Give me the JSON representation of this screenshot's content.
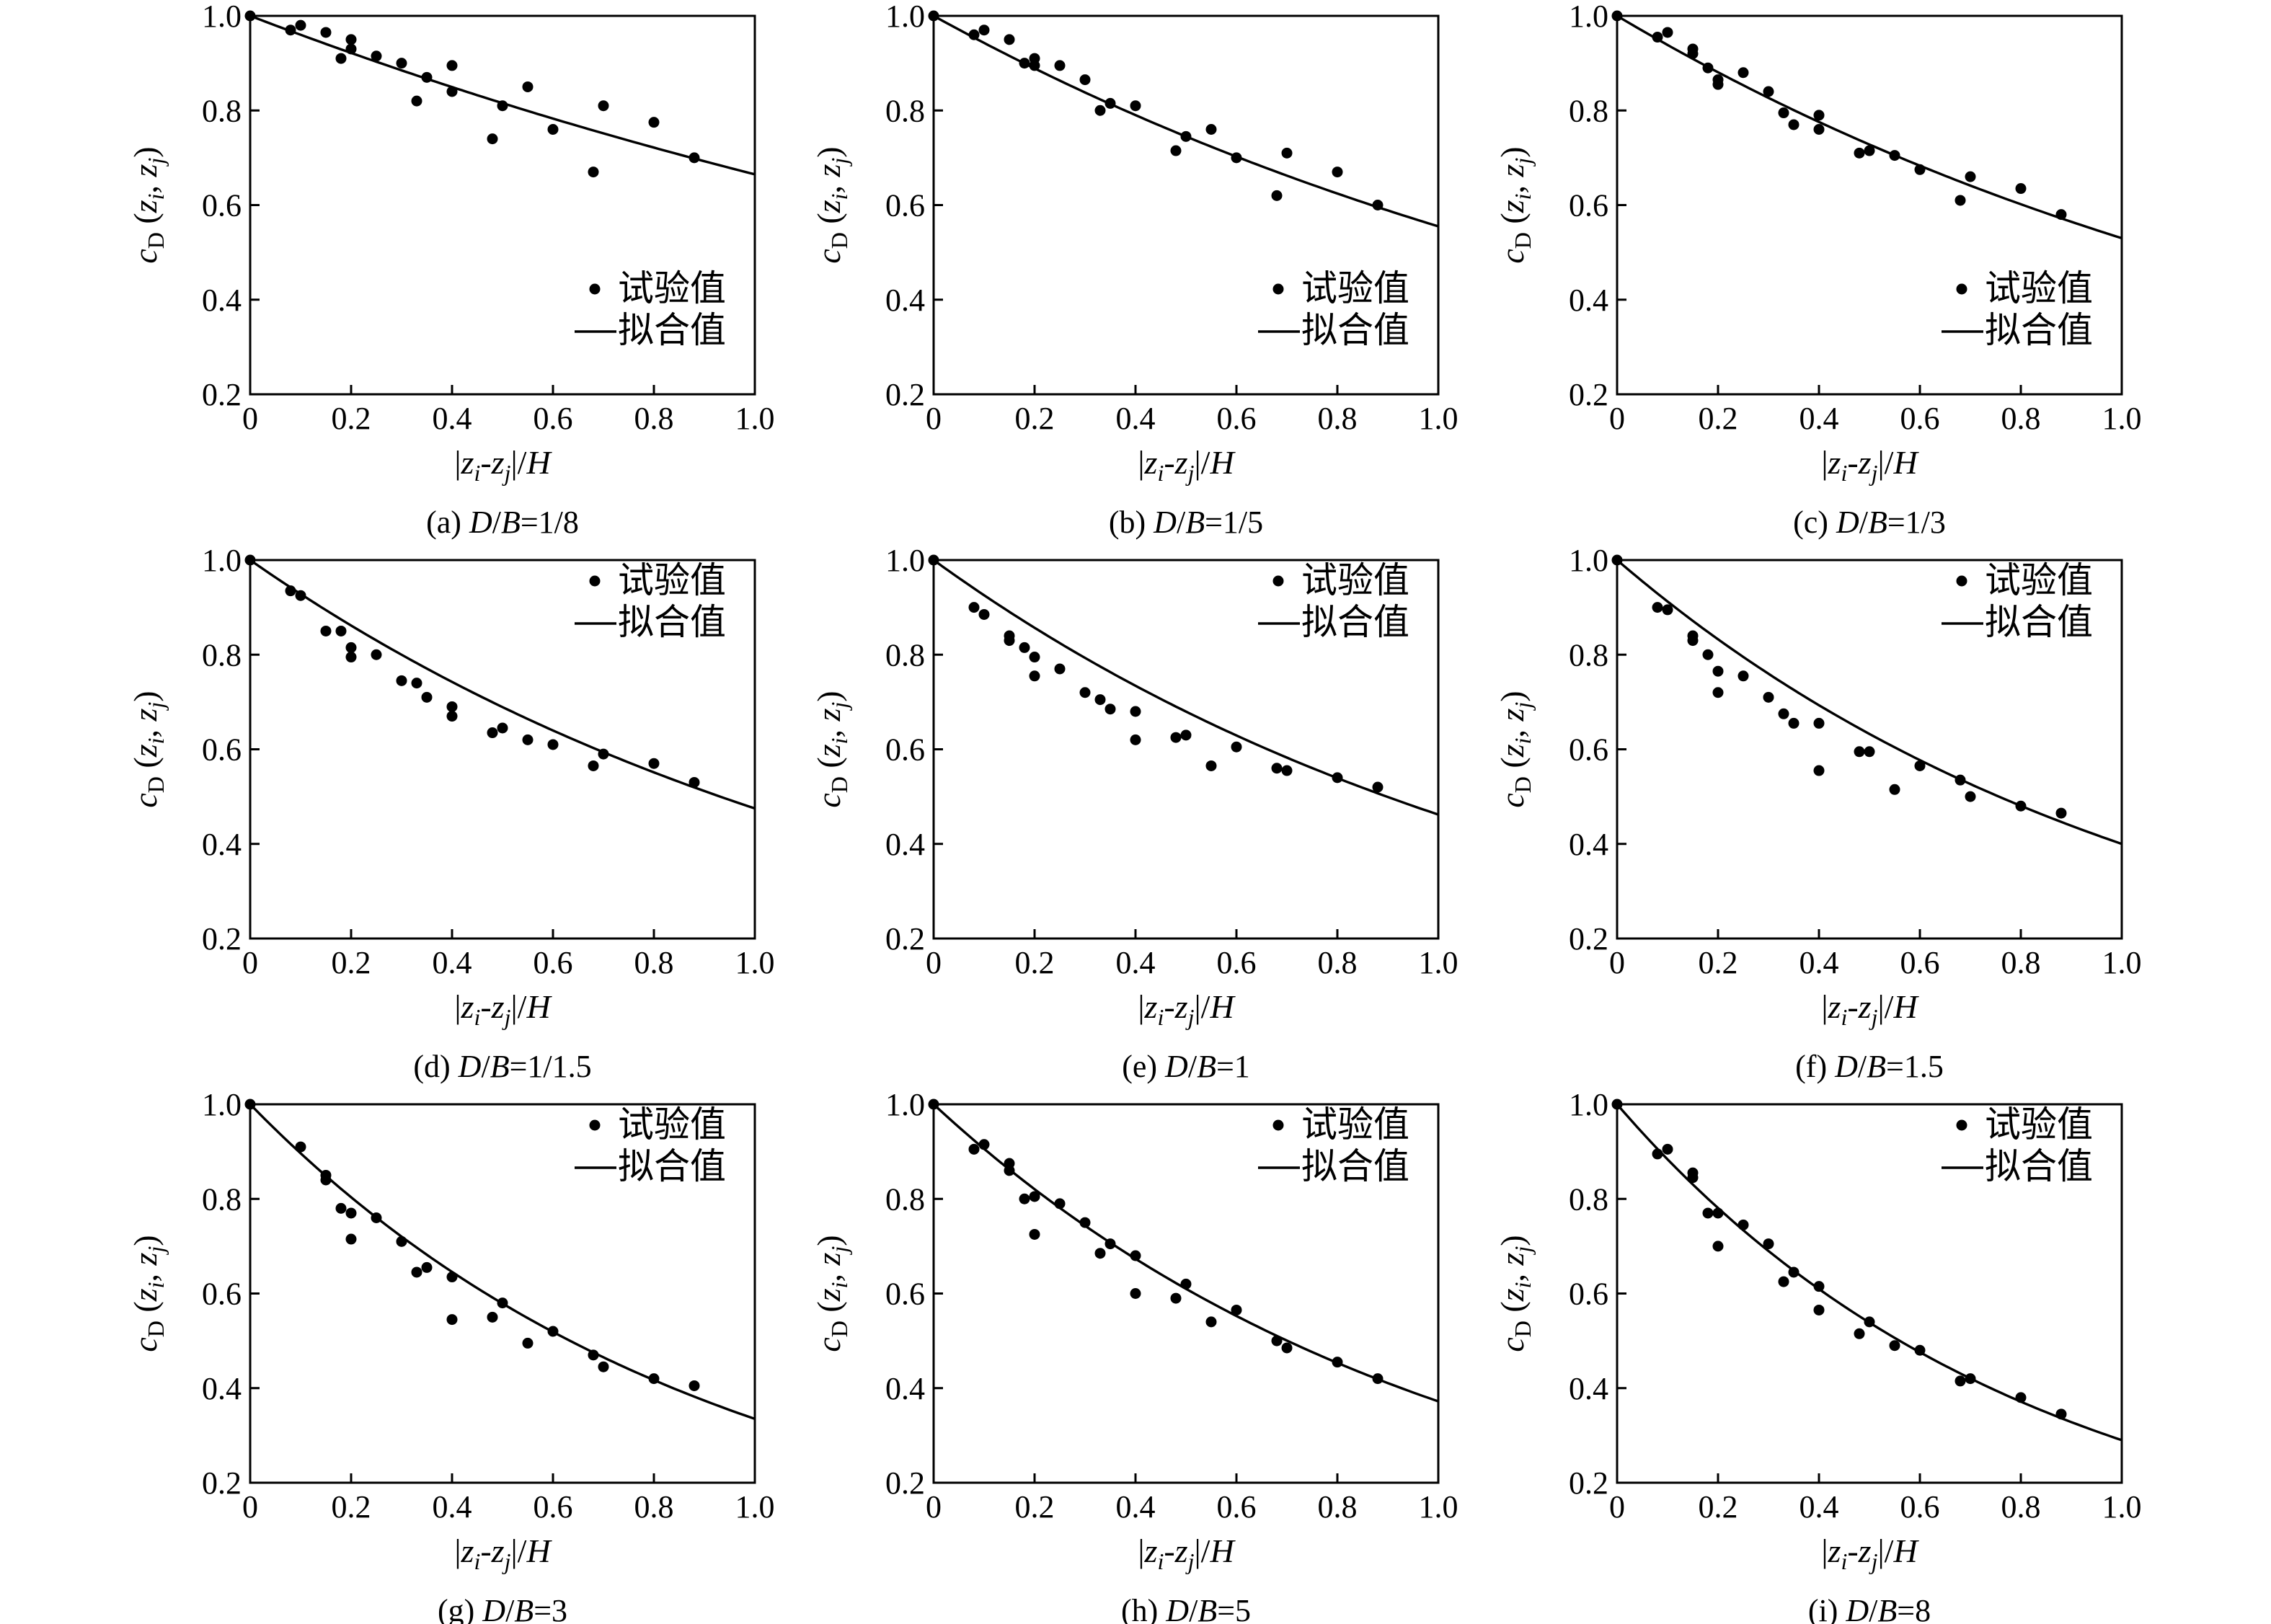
{
  "legend": {
    "test": "试验值",
    "fit": "拟合值"
  },
  "chart_data": [
    {
      "type": "scatter",
      "caption": {
        "label": "(a)",
        "ratio": "1/8"
      },
      "xlim": [
        0,
        1.0
      ],
      "ylim": [
        0.2,
        1.0
      ],
      "xticks": [
        "0",
        "0.2",
        "0.4",
        "0.6",
        "0.8",
        "1.0"
      ],
      "yticks": [
        "0.2",
        "0.4",
        "0.6",
        "0.8",
        "1.0"
      ],
      "fit_end": 0.665,
      "series": [
        {
          "x": [
            0,
            0.08,
            0.1,
            0.15,
            0.18,
            0.2,
            0.2,
            0.25,
            0.3,
            0.33,
            0.35,
            0.4,
            0.4,
            0.48,
            0.5,
            0.55,
            0.6,
            0.68,
            0.7,
            0.8,
            0.88
          ],
          "y": [
            1.0,
            0.97,
            0.98,
            0.965,
            0.91,
            0.95,
            0.93,
            0.915,
            0.9,
            0.82,
            0.87,
            0.895,
            0.84,
            0.74,
            0.81,
            0.85,
            0.76,
            0.67,
            0.81,
            0.775,
            0.7
          ]
        }
      ]
    },
    {
      "type": "scatter",
      "caption": {
        "label": "(b)",
        "ratio": "1/5"
      },
      "xlim": [
        0,
        1.0
      ],
      "ylim": [
        0.2,
        1.0
      ],
      "xticks": [
        "0",
        "0.2",
        "0.4",
        "0.6",
        "0.8",
        "1.0"
      ],
      "yticks": [
        "0.2",
        "0.4",
        "0.6",
        "0.8",
        "1.0"
      ],
      "fit_end": 0.555,
      "series": [
        {
          "x": [
            0,
            0.08,
            0.1,
            0.15,
            0.18,
            0.2,
            0.2,
            0.25,
            0.3,
            0.33,
            0.35,
            0.4,
            0.48,
            0.5,
            0.55,
            0.6,
            0.68,
            0.7,
            0.8,
            0.88
          ],
          "y": [
            1.0,
            0.96,
            0.97,
            0.95,
            0.9,
            0.91,
            0.895,
            0.895,
            0.865,
            0.8,
            0.815,
            0.81,
            0.715,
            0.745,
            0.76,
            0.7,
            0.62,
            0.71,
            0.67,
            0.6
          ]
        }
      ]
    },
    {
      "type": "scatter",
      "caption": {
        "label": "(c)",
        "ratio": "1/3"
      },
      "xlim": [
        0,
        1.0
      ],
      "ylim": [
        0.2,
        1.0
      ],
      "xticks": [
        "0",
        "0.2",
        "0.4",
        "0.6",
        "0.8",
        "1.0"
      ],
      "yticks": [
        "0.2",
        "0.4",
        "0.6",
        "0.8",
        "1.0"
      ],
      "fit_end": 0.53,
      "series": [
        {
          "x": [
            0,
            0.08,
            0.1,
            0.15,
            0.15,
            0.18,
            0.2,
            0.2,
            0.25,
            0.3,
            0.33,
            0.35,
            0.4,
            0.4,
            0.48,
            0.5,
            0.55,
            0.6,
            0.68,
            0.7,
            0.8,
            0.88
          ],
          "y": [
            1.0,
            0.955,
            0.965,
            0.93,
            0.92,
            0.89,
            0.865,
            0.855,
            0.88,
            0.84,
            0.795,
            0.77,
            0.79,
            0.76,
            0.71,
            0.715,
            0.705,
            0.675,
            0.61,
            0.66,
            0.635,
            0.58
          ]
        }
      ]
    },
    {
      "type": "scatter",
      "caption": {
        "label": "(d)",
        "ratio": "1/1.5"
      },
      "xlim": [
        0,
        1.0
      ],
      "ylim": [
        0.2,
        1.0
      ],
      "xticks": [
        "0",
        "0.2",
        "0.4",
        "0.6",
        "0.8",
        "1.0"
      ],
      "yticks": [
        "0.2",
        "0.4",
        "0.6",
        "0.8",
        "1.0"
      ],
      "fit_end": 0.475,
      "series": [
        {
          "x": [
            0,
            0.08,
            0.1,
            0.15,
            0.18,
            0.2,
            0.2,
            0.25,
            0.3,
            0.33,
            0.35,
            0.4,
            0.4,
            0.48,
            0.5,
            0.55,
            0.6,
            0.68,
            0.7,
            0.8,
            0.88
          ],
          "y": [
            1.0,
            0.935,
            0.925,
            0.85,
            0.85,
            0.815,
            0.795,
            0.8,
            0.745,
            0.74,
            0.71,
            0.69,
            0.67,
            0.635,
            0.645,
            0.62,
            0.61,
            0.565,
            0.59,
            0.57,
            0.53
          ]
        }
      ]
    },
    {
      "type": "scatter",
      "caption": {
        "label": "(e)",
        "ratio": "1"
      },
      "xlim": [
        0,
        1.0
      ],
      "ylim": [
        0.2,
        1.0
      ],
      "xticks": [
        "0",
        "0.2",
        "0.4",
        "0.6",
        "0.8",
        "1.0"
      ],
      "yticks": [
        "0.2",
        "0.4",
        "0.6",
        "0.8",
        "1.0"
      ],
      "fit_end": 0.462,
      "series": [
        {
          "x": [
            0,
            0.08,
            0.1,
            0.15,
            0.15,
            0.18,
            0.2,
            0.2,
            0.25,
            0.3,
            0.33,
            0.35,
            0.4,
            0.4,
            0.48,
            0.5,
            0.55,
            0.6,
            0.68,
            0.7,
            0.8,
            0.88
          ],
          "y": [
            1.0,
            0.9,
            0.885,
            0.84,
            0.83,
            0.815,
            0.795,
            0.755,
            0.77,
            0.72,
            0.705,
            0.685,
            0.68,
            0.62,
            0.625,
            0.63,
            0.565,
            0.605,
            0.56,
            0.555,
            0.54,
            0.52
          ]
        }
      ]
    },
    {
      "type": "scatter",
      "caption": {
        "label": "(f)",
        "ratio": "1.5"
      },
      "xlim": [
        0,
        1.0
      ],
      "ylim": [
        0.2,
        1.0
      ],
      "xticks": [
        "0",
        "0.2",
        "0.4",
        "0.6",
        "0.8",
        "1.0"
      ],
      "yticks": [
        "0.2",
        "0.4",
        "0.6",
        "0.8",
        "1.0"
      ],
      "fit_end": 0.4,
      "series": [
        {
          "x": [
            0,
            0.08,
            0.1,
            0.15,
            0.15,
            0.18,
            0.2,
            0.2,
            0.25,
            0.3,
            0.33,
            0.35,
            0.4,
            0.4,
            0.48,
            0.5,
            0.55,
            0.6,
            0.68,
            0.7,
            0.8,
            0.88
          ],
          "y": [
            1.0,
            0.9,
            0.895,
            0.84,
            0.83,
            0.8,
            0.765,
            0.72,
            0.755,
            0.71,
            0.675,
            0.655,
            0.655,
            0.555,
            0.595,
            0.595,
            0.515,
            0.565,
            0.535,
            0.5,
            0.48,
            0.465
          ]
        }
      ]
    },
    {
      "type": "scatter",
      "caption": {
        "label": "(g)",
        "ratio": "3"
      },
      "xlim": [
        0,
        1.0
      ],
      "ylim": [
        0.2,
        1.0
      ],
      "xticks": [
        "0",
        "0.2",
        "0.4",
        "0.6",
        "0.8",
        "1.0"
      ],
      "yticks": [
        "0.2",
        "0.4",
        "0.6",
        "0.8",
        "1.0"
      ],
      "fit_end": 0.335,
      "series": [
        {
          "x": [
            0,
            0.1,
            0.15,
            0.15,
            0.18,
            0.2,
            0.2,
            0.25,
            0.3,
            0.33,
            0.35,
            0.4,
            0.4,
            0.48,
            0.5,
            0.55,
            0.6,
            0.68,
            0.7,
            0.8,
            0.88
          ],
          "y": [
            1.0,
            0.91,
            0.85,
            0.84,
            0.78,
            0.77,
            0.715,
            0.76,
            0.71,
            0.645,
            0.655,
            0.635,
            0.545,
            0.55,
            0.58,
            0.495,
            0.52,
            0.47,
            0.445,
            0.42,
            0.405
          ]
        }
      ]
    },
    {
      "type": "scatter",
      "caption": {
        "label": "(h)",
        "ratio": "5"
      },
      "xlim": [
        0,
        1.0
      ],
      "ylim": [
        0.2,
        1.0
      ],
      "xticks": [
        "0",
        "0.2",
        "0.4",
        "0.6",
        "0.8",
        "1.0"
      ],
      "yticks": [
        "0.2",
        "0.4",
        "0.6",
        "0.8",
        "1.0"
      ],
      "fit_end": 0.372,
      "series": [
        {
          "x": [
            0,
            0.08,
            0.1,
            0.15,
            0.15,
            0.18,
            0.2,
            0.2,
            0.25,
            0.3,
            0.33,
            0.35,
            0.4,
            0.4,
            0.48,
            0.5,
            0.55,
            0.6,
            0.68,
            0.7,
            0.8,
            0.88
          ],
          "y": [
            1.0,
            0.905,
            0.915,
            0.875,
            0.86,
            0.8,
            0.805,
            0.725,
            0.79,
            0.75,
            0.685,
            0.705,
            0.68,
            0.6,
            0.59,
            0.62,
            0.54,
            0.565,
            0.5,
            0.485,
            0.455,
            0.42
          ]
        }
      ]
    },
    {
      "type": "scatter",
      "caption": {
        "label": "(i)",
        "ratio": "8"
      },
      "xlim": [
        0,
        1.0
      ],
      "ylim": [
        0.2,
        1.0
      ],
      "xticks": [
        "0",
        "0.2",
        "0.4",
        "0.6",
        "0.8",
        "1.0"
      ],
      "yticks": [
        "0.2",
        "0.4",
        "0.6",
        "0.8",
        "1.0"
      ],
      "fit_end": 0.29,
      "series": [
        {
          "x": [
            0,
            0.08,
            0.1,
            0.15,
            0.15,
            0.18,
            0.2,
            0.2,
            0.25,
            0.3,
            0.33,
            0.35,
            0.4,
            0.4,
            0.48,
            0.5,
            0.55,
            0.6,
            0.68,
            0.7,
            0.8,
            0.88
          ],
          "y": [
            1.0,
            0.895,
            0.905,
            0.855,
            0.845,
            0.77,
            0.77,
            0.7,
            0.745,
            0.705,
            0.625,
            0.645,
            0.615,
            0.565,
            0.515,
            0.54,
            0.49,
            0.48,
            0.415,
            0.42,
            0.38,
            0.345
          ]
        }
      ]
    }
  ]
}
